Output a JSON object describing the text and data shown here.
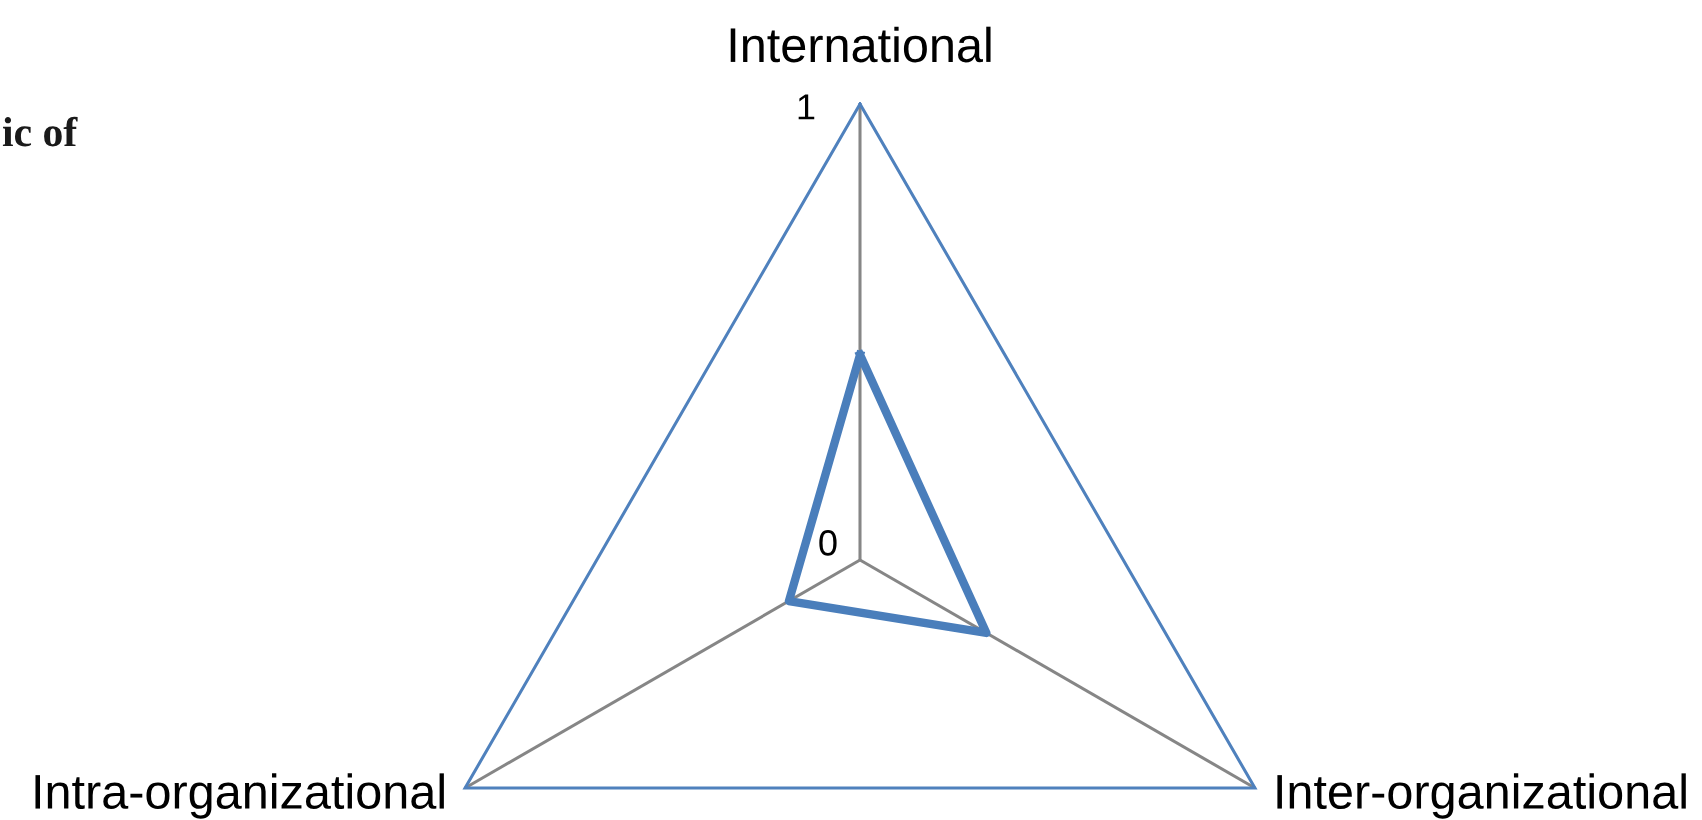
{
  "chart_data": {
    "type": "radar",
    "annotations": [
      "ic of"
    ],
    "categories": [
      "International",
      "Inter-organizational",
      "Intra-organizational"
    ],
    "series": [
      {
        "color": "#4a7ebb",
        "values": [
          0.45,
          0.32,
          0.18
        ]
      }
    ],
    "ylim": [
      0,
      1
    ],
    "yticks": [
      0,
      1
    ],
    "grid": true
  }
}
